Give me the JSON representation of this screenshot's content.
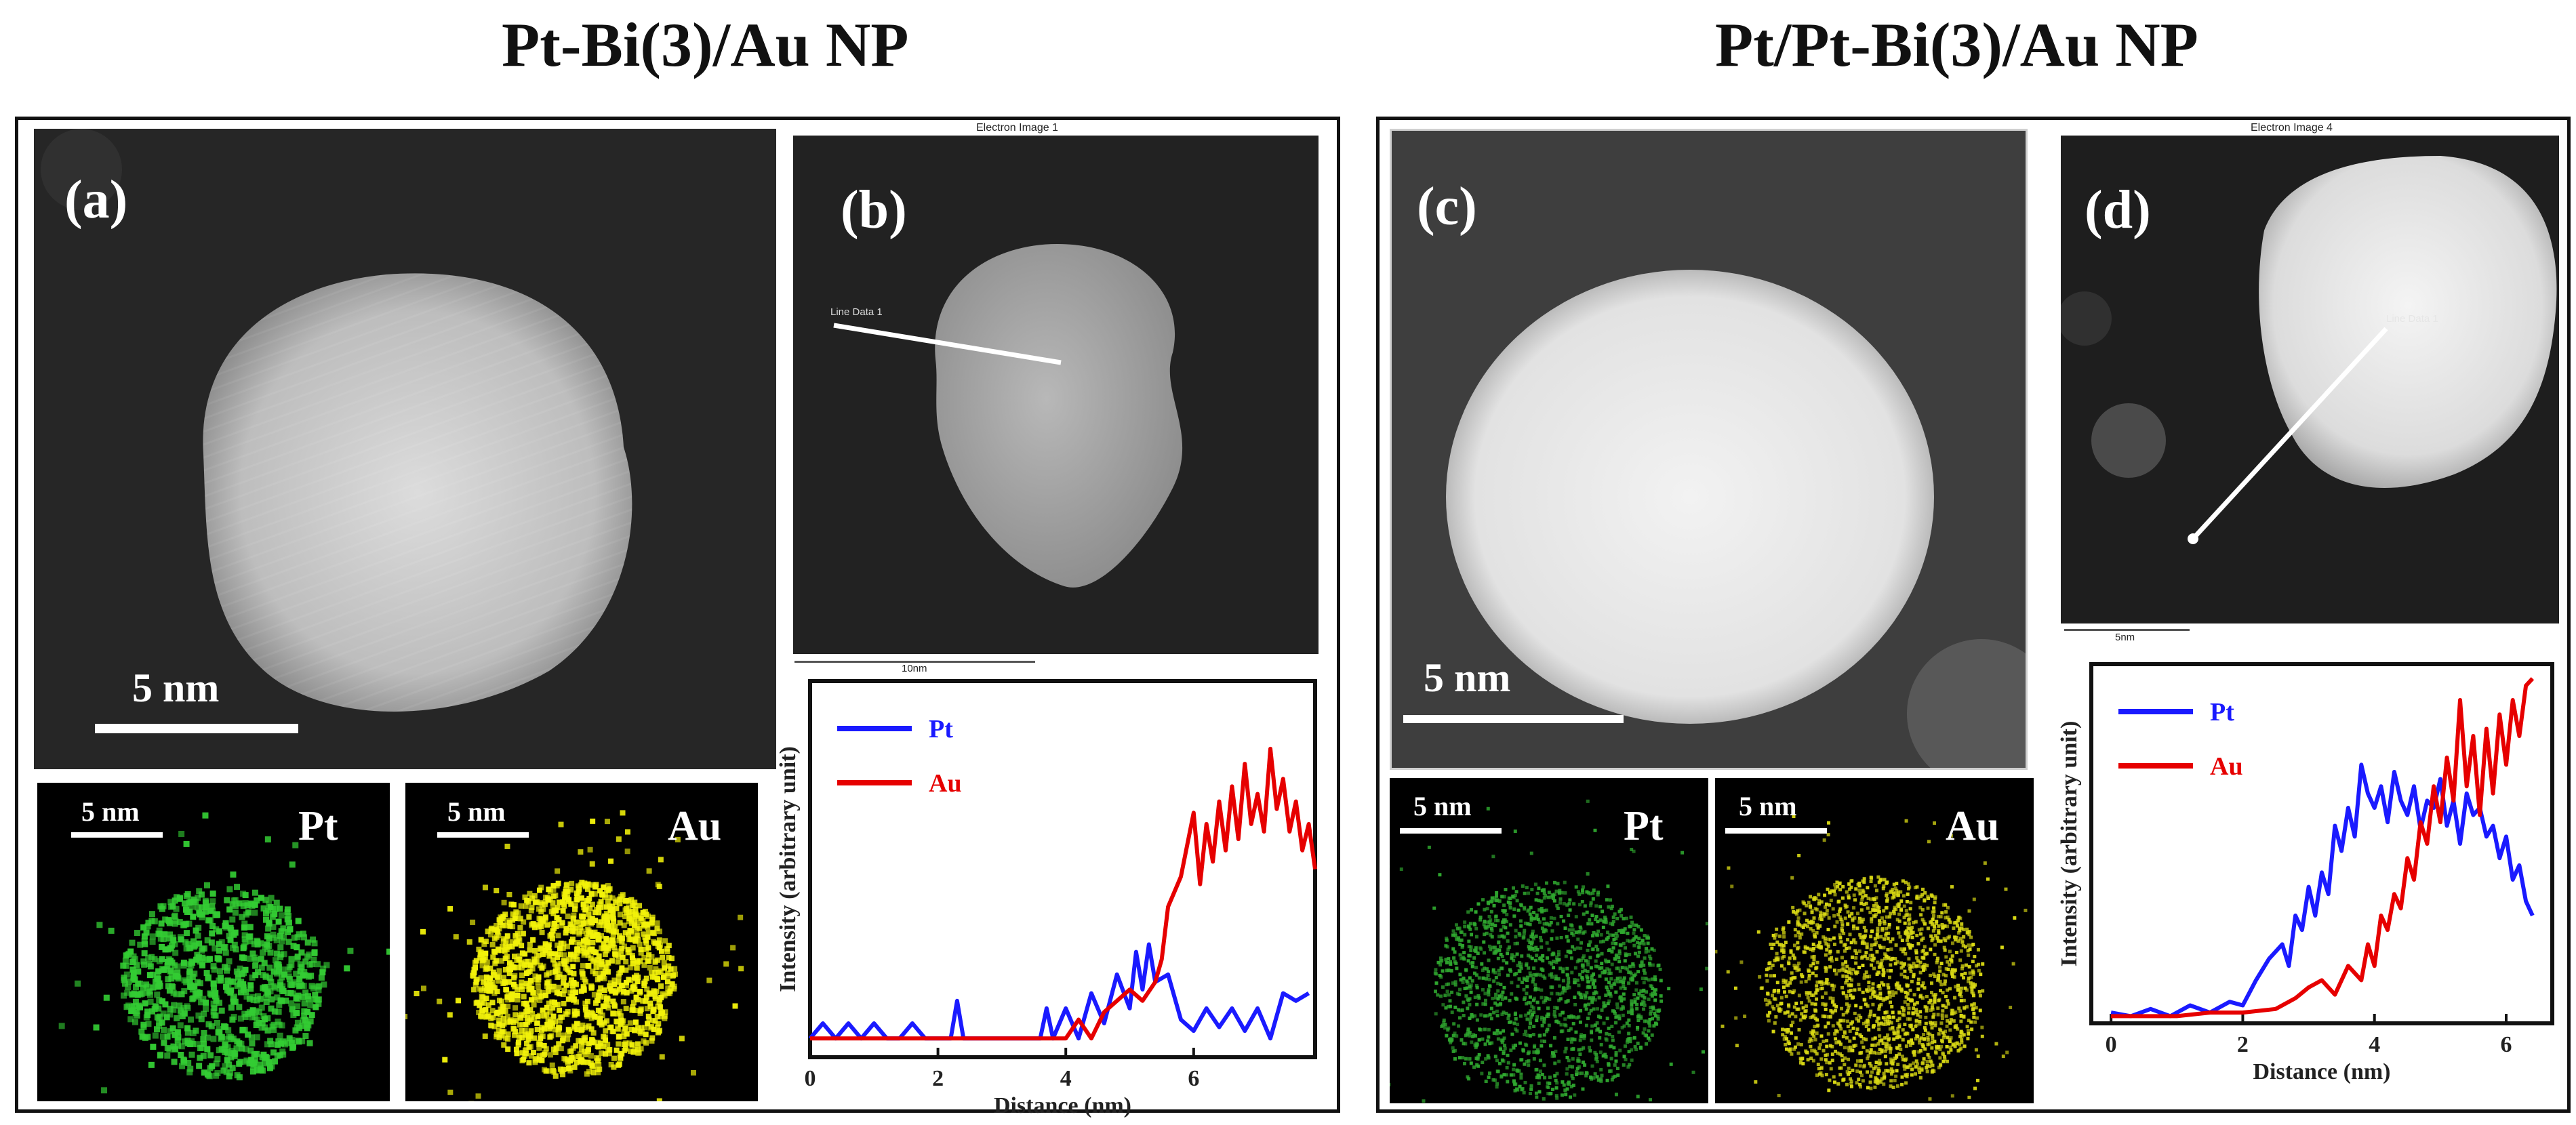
{
  "headings": {
    "left": "Pt-Bi(3)/Au NP",
    "right": "Pt/Pt-Bi(3)/Au NP"
  },
  "panels": {
    "a": {
      "letter": "(a)",
      "scale": "5 nm"
    },
    "b": {
      "letter": "(b)",
      "caption": "Electron Image 1",
      "line_label": "Line Data 1",
      "scale": "10nm"
    },
    "c": {
      "letter": "(c)",
      "scale": "5 nm"
    },
    "d": {
      "letter": "(d)",
      "caption": "Electron Image 4",
      "line_label": "Line Data 1",
      "scale": "5nm"
    }
  },
  "maps": {
    "left_pt": {
      "scale": "5 nm",
      "element": "Pt",
      "color": "#33cc33"
    },
    "left_au": {
      "scale": "5 nm",
      "element": "Au",
      "color": "#f2f20a"
    },
    "right_pt": {
      "scale": "5 nm",
      "element": "Pt",
      "color": "#2fa82f"
    },
    "right_au": {
      "scale": "5 nm",
      "element": "Au",
      "color": "#d9d914"
    }
  },
  "chart_data": [
    {
      "type": "line",
      "id": "line-scan-b",
      "xlabel": "Distance (nm)",
      "ylabel": "Intensity (arbitrary unit)",
      "xlim": [
        0,
        7.9
      ],
      "ylim": [
        0,
        1
      ],
      "xticks": [
        0,
        2,
        4,
        6
      ],
      "series": [
        {
          "name": "Pt",
          "color": "#1a1aff",
          "x": [
            0,
            0.2,
            0.4,
            0.6,
            0.8,
            1.0,
            1.2,
            1.4,
            1.6,
            1.8,
            2.0,
            2.2,
            2.3,
            2.4,
            2.6,
            2.8,
            3.0,
            3.2,
            3.4,
            3.6,
            3.7,
            3.8,
            4.0,
            4.2,
            4.4,
            4.6,
            4.8,
            5.0,
            5.1,
            5.2,
            5.3,
            5.4,
            5.6,
            5.8,
            6.0,
            6.2,
            6.4,
            6.6,
            6.8,
            7.0,
            7.2,
            7.4,
            7.6,
            7.8
          ],
          "y": [
            0.05,
            0.09,
            0.05,
            0.09,
            0.05,
            0.09,
            0.05,
            0.05,
            0.09,
            0.05,
            0.05,
            0.05,
            0.15,
            0.05,
            0.05,
            0.05,
            0.05,
            0.05,
            0.05,
            0.05,
            0.13,
            0.05,
            0.13,
            0.05,
            0.17,
            0.09,
            0.22,
            0.13,
            0.28,
            0.18,
            0.3,
            0.2,
            0.22,
            0.1,
            0.07,
            0.13,
            0.08,
            0.13,
            0.07,
            0.13,
            0.05,
            0.17,
            0.15,
            0.17
          ]
        },
        {
          "name": "Au",
          "color": "#e60000",
          "x": [
            0,
            0.5,
            1.0,
            1.5,
            2.0,
            2.5,
            3.0,
            3.5,
            3.8,
            4.0,
            4.2,
            4.4,
            4.6,
            4.8,
            5.0,
            5.2,
            5.4,
            5.5,
            5.6,
            5.8,
            6.0,
            6.1,
            6.2,
            6.3,
            6.4,
            6.5,
            6.6,
            6.7,
            6.8,
            6.9,
            7.0,
            7.1,
            7.2,
            7.3,
            7.4,
            7.5,
            7.6,
            7.7,
            7.8,
            7.9
          ],
          "y": [
            0.05,
            0.05,
            0.05,
            0.05,
            0.05,
            0.05,
            0.05,
            0.05,
            0.05,
            0.05,
            0.1,
            0.05,
            0.12,
            0.15,
            0.18,
            0.15,
            0.2,
            0.26,
            0.4,
            0.48,
            0.65,
            0.46,
            0.62,
            0.52,
            0.68,
            0.55,
            0.72,
            0.58,
            0.78,
            0.62,
            0.7,
            0.6,
            0.82,
            0.66,
            0.74,
            0.6,
            0.68,
            0.55,
            0.62,
            0.5
          ]
        }
      ]
    },
    {
      "type": "line",
      "id": "line-scan-d",
      "xlabel": "Distance (nm)",
      "ylabel": "Intensity (arbitrary unit)",
      "xlim": [
        -0.3,
        6.7
      ],
      "ylim": [
        0,
        1
      ],
      "xticks": [
        0,
        2,
        4,
        6
      ],
      "series": [
        {
          "name": "Pt",
          "color": "#1a1aff",
          "x": [
            0,
            0.3,
            0.6,
            0.9,
            1.2,
            1.5,
            1.8,
            2.0,
            2.2,
            2.4,
            2.6,
            2.7,
            2.8,
            2.9,
            3.0,
            3.1,
            3.2,
            3.3,
            3.4,
            3.5,
            3.6,
            3.7,
            3.8,
            3.9,
            4.0,
            4.1,
            4.2,
            4.3,
            4.4,
            4.5,
            4.6,
            4.7,
            4.8,
            4.9,
            5.0,
            5.1,
            5.2,
            5.3,
            5.4,
            5.5,
            5.6,
            5.7,
            5.8,
            5.9,
            6.0,
            6.1,
            6.2,
            6.3,
            6.4
          ],
          "y": [
            0.03,
            0.02,
            0.04,
            0.02,
            0.05,
            0.03,
            0.06,
            0.05,
            0.12,
            0.18,
            0.22,
            0.16,
            0.3,
            0.26,
            0.38,
            0.3,
            0.42,
            0.36,
            0.55,
            0.48,
            0.6,
            0.52,
            0.72,
            0.64,
            0.6,
            0.66,
            0.56,
            0.7,
            0.62,
            0.58,
            0.66,
            0.54,
            0.62,
            0.6,
            0.68,
            0.55,
            0.62,
            0.5,
            0.64,
            0.58,
            0.6,
            0.52,
            0.55,
            0.46,
            0.52,
            0.4,
            0.44,
            0.34,
            0.3
          ]
        },
        {
          "name": "Au",
          "color": "#e60000",
          "x": [
            0,
            0.5,
            1.0,
            1.5,
            2.0,
            2.5,
            2.8,
            3.0,
            3.2,
            3.4,
            3.6,
            3.8,
            3.9,
            4.0,
            4.1,
            4.2,
            4.3,
            4.4,
            4.5,
            4.6,
            4.7,
            4.8,
            4.9,
            5.0,
            5.1,
            5.2,
            5.3,
            5.4,
            5.5,
            5.6,
            5.7,
            5.8,
            5.9,
            6.0,
            6.1,
            6.2,
            6.3,
            6.4
          ],
          "y": [
            0.02,
            0.02,
            0.02,
            0.03,
            0.03,
            0.04,
            0.07,
            0.1,
            0.12,
            0.08,
            0.16,
            0.12,
            0.22,
            0.16,
            0.3,
            0.26,
            0.36,
            0.32,
            0.46,
            0.4,
            0.56,
            0.5,
            0.66,
            0.56,
            0.74,
            0.62,
            0.9,
            0.66,
            0.8,
            0.58,
            0.82,
            0.64,
            0.86,
            0.72,
            0.9,
            0.8,
            0.94,
            0.96
          ]
        }
      ]
    }
  ]
}
